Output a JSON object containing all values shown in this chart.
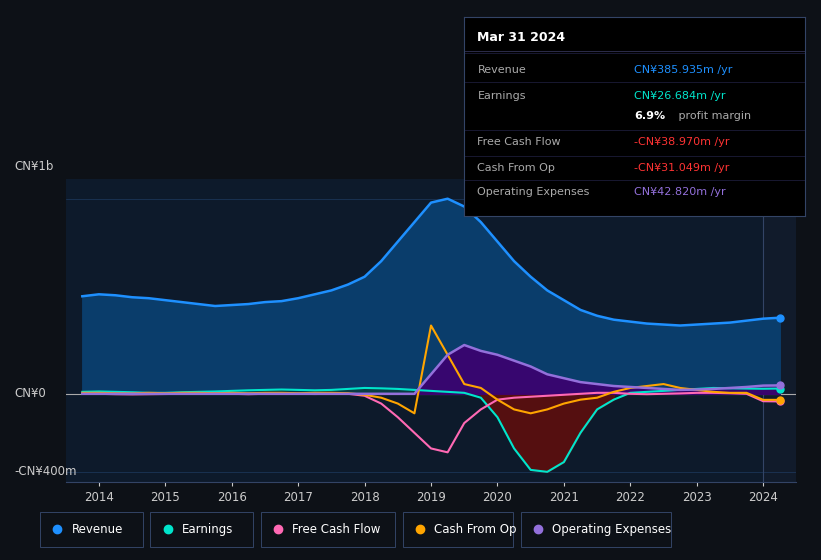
{
  "background_color": "#0d1117",
  "plot_bg_color": "#0d1a2b",
  "right_panel_bg": "#111b2b",
  "ylabel_top": "CN¥1b",
  "ylabel_bottom": "-CN¥400m",
  "y0_label": "CN¥0",
  "xlim": [
    2013.5,
    2024.5
  ],
  "ylim": [
    -450,
    1100
  ],
  "xtick_labels": [
    "2014",
    "2015",
    "2016",
    "2017",
    "2018",
    "2019",
    "2020",
    "2021",
    "2022",
    "2023",
    "2024"
  ],
  "xtick_values": [
    2014,
    2015,
    2016,
    2017,
    2018,
    2019,
    2020,
    2021,
    2022,
    2023,
    2024
  ],
  "info_box": {
    "title": "Mar 31 2024",
    "rows": [
      {
        "label": "Revenue",
        "value": "CN¥385.935m /yr",
        "value_color": "#1e90ff"
      },
      {
        "label": "Earnings",
        "value": "CN¥26.684m /yr",
        "value_color": "#00e5cc"
      },
      {
        "label": "",
        "value": "6.9% profit margin",
        "value_color": "#cccccc",
        "bold_part": "6.9%"
      },
      {
        "label": "Free Cash Flow",
        "value": "-CN¥38.970m /yr",
        "value_color": "#ff3333"
      },
      {
        "label": "Cash From Op",
        "value": "-CN¥31.049m /yr",
        "value_color": "#ff3333"
      },
      {
        "label": "Operating Expenses",
        "value": "CN¥42.820m /yr",
        "value_color": "#9370db"
      }
    ]
  },
  "series": {
    "revenue": {
      "color": "#1e90ff",
      "fill_color": "#0a3d6b",
      "label": "Revenue",
      "x": [
        2013.75,
        2014.0,
        2014.25,
        2014.5,
        2014.75,
        2015.0,
        2015.25,
        2015.5,
        2015.75,
        2016.0,
        2016.25,
        2016.5,
        2016.75,
        2017.0,
        2017.25,
        2017.5,
        2017.75,
        2018.0,
        2018.25,
        2018.5,
        2018.75,
        2019.0,
        2019.25,
        2019.5,
        2019.75,
        2020.0,
        2020.25,
        2020.5,
        2020.75,
        2021.0,
        2021.25,
        2021.5,
        2021.75,
        2022.0,
        2022.25,
        2022.5,
        2022.75,
        2023.0,
        2023.25,
        2023.5,
        2023.75,
        2024.0,
        2024.25
      ],
      "y": [
        500,
        510,
        505,
        495,
        490,
        480,
        470,
        460,
        450,
        455,
        460,
        470,
        475,
        490,
        510,
        530,
        560,
        600,
        680,
        780,
        880,
        980,
        1000,
        960,
        880,
        780,
        680,
        600,
        530,
        480,
        430,
        400,
        380,
        370,
        360,
        355,
        350,
        355,
        360,
        365,
        375,
        385,
        390
      ]
    },
    "earnings": {
      "color": "#00e5cc",
      "label": "Earnings",
      "x": [
        2013.75,
        2014.0,
        2014.25,
        2014.5,
        2014.75,
        2015.0,
        2015.25,
        2015.5,
        2015.75,
        2016.0,
        2016.25,
        2016.5,
        2016.75,
        2017.0,
        2017.25,
        2017.5,
        2017.75,
        2018.0,
        2018.25,
        2018.5,
        2018.75,
        2019.0,
        2019.25,
        2019.5,
        2019.75,
        2020.0,
        2020.25,
        2020.5,
        2020.75,
        2021.0,
        2021.25,
        2021.5,
        2021.75,
        2022.0,
        2022.25,
        2022.5,
        2022.75,
        2023.0,
        2023.25,
        2023.5,
        2023.75,
        2024.0,
        2024.25
      ],
      "y": [
        10,
        12,
        10,
        8,
        5,
        5,
        8,
        10,
        12,
        15,
        18,
        20,
        22,
        20,
        18,
        20,
        25,
        30,
        28,
        25,
        20,
        15,
        10,
        5,
        -20,
        -120,
        -280,
        -390,
        -400,
        -350,
        -200,
        -80,
        -30,
        5,
        10,
        15,
        20,
        25,
        30,
        28,
        27,
        26,
        27
      ]
    },
    "free_cash_flow": {
      "color": "#ff69b4",
      "label": "Free Cash Flow",
      "x": [
        2013.75,
        2014.0,
        2014.25,
        2014.5,
        2014.75,
        2015.0,
        2015.25,
        2015.5,
        2015.75,
        2016.0,
        2016.25,
        2016.5,
        2016.75,
        2017.0,
        2017.25,
        2017.5,
        2017.75,
        2018.0,
        2018.25,
        2018.5,
        2018.75,
        2019.0,
        2019.25,
        2019.5,
        2019.75,
        2020.0,
        2020.25,
        2020.5,
        2020.75,
        2021.0,
        2021.25,
        2021.5,
        2021.75,
        2022.0,
        2022.25,
        2022.5,
        2022.75,
        2023.0,
        2023.25,
        2023.5,
        2023.75,
        2024.0,
        2024.25
      ],
      "y": [
        0,
        0,
        -2,
        -3,
        -2,
        -1,
        0,
        2,
        2,
        0,
        -2,
        0,
        2,
        0,
        -1,
        0,
        0,
        -10,
        -50,
        -120,
        -200,
        -280,
        -300,
        -150,
        -80,
        -30,
        -20,
        -15,
        -10,
        -5,
        0,
        5,
        5,
        0,
        -2,
        0,
        2,
        5,
        5,
        3,
        0,
        -38,
        -39
      ]
    },
    "cash_from_op": {
      "color": "#ffa500",
      "label": "Cash From Op",
      "x": [
        2013.75,
        2014.0,
        2014.25,
        2014.5,
        2014.75,
        2015.0,
        2015.25,
        2015.5,
        2015.75,
        2016.0,
        2016.25,
        2016.5,
        2016.75,
        2017.0,
        2017.25,
        2017.5,
        2017.75,
        2018.0,
        2018.25,
        2018.5,
        2018.75,
        2019.0,
        2019.25,
        2019.5,
        2019.75,
        2020.0,
        2020.25,
        2020.5,
        2020.75,
        2021.0,
        2021.25,
        2021.5,
        2021.75,
        2022.0,
        2022.25,
        2022.5,
        2022.75,
        2023.0,
        2023.25,
        2023.5,
        2023.75,
        2024.0,
        2024.25
      ],
      "y": [
        5,
        5,
        3,
        2,
        5,
        3,
        5,
        5,
        3,
        5,
        3,
        5,
        5,
        3,
        5,
        5,
        3,
        -5,
        -20,
        -50,
        -100,
        350,
        200,
        50,
        30,
        -30,
        -80,
        -100,
        -80,
        -50,
        -30,
        -20,
        10,
        30,
        40,
        50,
        30,
        20,
        10,
        5,
        5,
        -31,
        -31
      ]
    },
    "operating_expenses": {
      "color": "#9370db",
      "fill_color": "#3d0070",
      "label": "Operating Expenses",
      "x": [
        2013.75,
        2014.0,
        2014.25,
        2014.5,
        2014.75,
        2015.0,
        2015.25,
        2015.5,
        2015.75,
        2016.0,
        2016.25,
        2016.5,
        2016.75,
        2017.0,
        2017.25,
        2017.5,
        2017.75,
        2018.0,
        2018.25,
        2018.5,
        2018.75,
        2019.0,
        2019.25,
        2019.5,
        2019.75,
        2020.0,
        2020.25,
        2020.5,
        2020.75,
        2021.0,
        2021.25,
        2021.5,
        2021.75,
        2022.0,
        2022.25,
        2022.5,
        2022.75,
        2023.0,
        2023.25,
        2023.5,
        2023.75,
        2024.0,
        2024.25
      ],
      "y": [
        0,
        0,
        0,
        0,
        0,
        0,
        0,
        0,
        0,
        0,
        0,
        0,
        0,
        0,
        0,
        0,
        0,
        0,
        0,
        0,
        0,
        100,
        200,
        250,
        220,
        200,
        170,
        140,
        100,
        80,
        60,
        50,
        40,
        35,
        30,
        25,
        20,
        22,
        25,
        30,
        35,
        42,
        43
      ]
    }
  },
  "legend_items": [
    {
      "label": "Revenue",
      "color": "#1e90ff"
    },
    {
      "label": "Earnings",
      "color": "#00e5cc"
    },
    {
      "label": "Free Cash Flow",
      "color": "#ff69b4"
    },
    {
      "label": "Cash From Op",
      "color": "#ffa500"
    },
    {
      "label": "Operating Expenses",
      "color": "#9370db"
    }
  ],
  "vertical_line_x": 2024.0,
  "grid_color": "#1e3a5f",
  "text_color": "#cccccc",
  "zero_line_color": "#aaaaaa"
}
